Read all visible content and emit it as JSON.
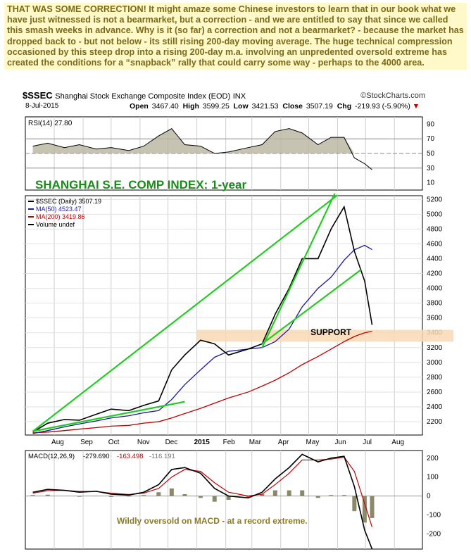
{
  "commentary": "THAT WAS SOME CORRECTION! It might amaze some Chinese investors to learn that in our book what we have just witnessed is not a bearmarket, but a correction - and we are entitled to say that since we called this smash weeks in advance. Why is it (so far) a correction and not a bearmarket? - because the market has dropped back to - but not below - its still rising 200-day moving average. The huge technical compression occasioned by this steep drop into a rising 200-day m.a. involving an unpredented oversold extreme has created the conditions for a “snapback” rally that could carry some way - perhaps to the 4000 area.",
  "header": {
    "symbol": "$SSEC",
    "name": "Shanghai Stock Exchange Composite Index (EOD)",
    "exchange": "INX",
    "brand": "©StockCharts.com",
    "date": "8-Jul-2015",
    "open_label": "Open",
    "open": "3467.40",
    "high_label": "High",
    "high": "3599.25",
    "low_label": "Low",
    "low": "3421.53",
    "close_label": "Close",
    "close": "3507.19",
    "chg_label": "Chg",
    "chg": "-219.93 (-5.90%)",
    "chg_marker": "▼"
  },
  "chart_data": [
    {
      "type": "line",
      "panel": "rsi",
      "legend": "RSI(14) 27.80",
      "yticks": [
        10,
        30,
        50,
        70,
        90
      ],
      "ylim": [
        0,
        100
      ],
      "overbought": 70,
      "oversold": 30,
      "x": [
        "2014-07-09",
        "2014-07-25",
        "2014-08-12",
        "2014-08-28",
        "2014-09-15",
        "2014-10-01",
        "2014-10-20",
        "2014-11-05",
        "2014-11-21",
        "2014-12-05",
        "2014-12-19",
        "2015-01-05",
        "2015-01-20",
        "2015-02-04",
        "2015-02-25",
        "2015-03-12",
        "2015-03-26",
        "2015-04-10",
        "2015-04-24",
        "2015-05-11",
        "2015-05-25",
        "2015-06-08",
        "2015-06-19",
        "2015-06-30",
        "2015-07-08"
      ],
      "values": [
        60,
        64,
        58,
        62,
        56,
        58,
        54,
        60,
        74,
        84,
        62,
        60,
        50,
        52,
        58,
        62,
        80,
        84,
        78,
        62,
        72,
        72,
        44,
        36,
        27.8
      ]
    },
    {
      "type": "line",
      "panel": "price",
      "title": "SHANGHAI S.E. COMP INDEX: 1-year",
      "legend": [
        "$SSEC (Daily) 3507.19",
        "MA(50) 4523.47",
        "MA(200) 3419.86",
        "Volume undef"
      ],
      "yticks": [
        2200,
        2400,
        2600,
        2800,
        3000,
        3200,
        3400,
        3600,
        3800,
        4000,
        4200,
        4400,
        4600,
        4800,
        5000,
        5200
      ],
      "ylim": [
        2020,
        5250
      ],
      "xticks": [
        "Aug",
        "Sep",
        "Oct",
        "Nov",
        "Dec",
        "2015",
        "Feb",
        "Mar",
        "Apr",
        "May",
        "Jun",
        "Jul",
        "Aug"
      ],
      "x": [
        "2014-07-09",
        "2014-07-25",
        "2014-08-12",
        "2014-08-28",
        "2014-09-15",
        "2014-10-01",
        "2014-10-20",
        "2014-11-05",
        "2014-11-21",
        "2014-12-05",
        "2014-12-19",
        "2015-01-05",
        "2015-01-20",
        "2015-02-04",
        "2015-02-25",
        "2015-03-12",
        "2015-03-26",
        "2015-04-10",
        "2015-04-24",
        "2015-05-11",
        "2015-05-25",
        "2015-06-08",
        "2015-06-19",
        "2015-06-30",
        "2015-07-08"
      ],
      "series": [
        {
          "name": "$SSEC (Daily)",
          "values": [
            2060,
            2180,
            2230,
            2220,
            2300,
            2370,
            2350,
            2420,
            2480,
            2900,
            3100,
            3300,
            3250,
            3100,
            3180,
            3250,
            3650,
            4000,
            4400,
            4400,
            4800,
            5100,
            4500,
            4100,
            3507
          ]
        },
        {
          "name": "MA(50)",
          "values": [
            2040,
            2080,
            2130,
            2170,
            2210,
            2250,
            2280,
            2320,
            2350,
            2500,
            2700,
            2900,
            3070,
            3150,
            3180,
            3200,
            3280,
            3450,
            3750,
            4000,
            4150,
            4380,
            4520,
            4580,
            4523
          ]
        },
        {
          "name": "MA(200)",
          "values": [
            2050,
            2060,
            2080,
            2100,
            2120,
            2140,
            2150,
            2180,
            2200,
            2250,
            2310,
            2380,
            2450,
            2520,
            2600,
            2680,
            2760,
            2860,
            2970,
            3080,
            3180,
            3280,
            3350,
            3400,
            3420
          ]
        }
      ],
      "annotations": [
        "SUPPORT"
      ],
      "support_band": [
        3280,
        3440
      ],
      "trendlines": [
        {
          "from": [
            "2014-07-09",
            2070
          ],
          "to": [
            "2014-12-19",
            2470
          ]
        },
        {
          "from": [
            "2014-07-09",
            2070
          ],
          "to": [
            "2015-06-01",
            5260
          ]
        },
        {
          "from": [
            "2015-03-12",
            3200
          ],
          "to": [
            "2015-05-29",
            5280
          ]
        },
        {
          "from": [
            "2015-03-12",
            3250
          ],
          "to": [
            "2015-06-26",
            4250
          ]
        }
      ]
    },
    {
      "type": "line",
      "panel": "macd",
      "legend": [
        "MACD(12,26,9)",
        "-279.690",
        "-163.498",
        "-116.191"
      ],
      "annotation": "Wildly oversold on MACD - at a record extreme.",
      "yticks": [
        -200,
        -100,
        0,
        100,
        200
      ],
      "ylim": [
        -280,
        240
      ],
      "xticks": [
        "Aug",
        "Sep",
        "Oct",
        "Nov",
        "Dec",
        "2015",
        "Feb",
        "Mar",
        "Apr",
        "May",
        "Jun",
        "Jul",
        "Aug"
      ],
      "x": [
        "2014-07-09",
        "2014-07-25",
        "2014-08-12",
        "2014-08-28",
        "2014-09-15",
        "2014-10-01",
        "2014-10-20",
        "2014-11-05",
        "2014-11-21",
        "2014-12-05",
        "2014-12-19",
        "2015-01-05",
        "2015-01-20",
        "2015-02-04",
        "2015-02-25",
        "2015-03-12",
        "2015-03-26",
        "2015-04-10",
        "2015-04-24",
        "2015-05-11",
        "2015-05-25",
        "2015-06-08",
        "2015-06-19",
        "2015-06-30",
        "2015-07-08"
      ],
      "series": [
        {
          "name": "MACD",
          "values": [
            20,
            35,
            30,
            20,
            25,
            10,
            5,
            20,
            60,
            140,
            150,
            120,
            40,
            0,
            -10,
            20,
            90,
            150,
            220,
            180,
            200,
            210,
            50,
            -180,
            -279.69
          ]
        },
        {
          "name": "Signal",
          "values": [
            15,
            28,
            30,
            24,
            24,
            15,
            8,
            15,
            40,
            100,
            140,
            130,
            70,
            20,
            0,
            10,
            60,
            120,
            190,
            190,
            195,
            205,
            130,
            -40,
            -163.5
          ]
        },
        {
          "name": "Histogram",
          "values": [
            5,
            7,
            0,
            -4,
            1,
            -5,
            -3,
            5,
            20,
            40,
            10,
            -10,
            -30,
            -20,
            -10,
            10,
            30,
            30,
            30,
            -10,
            5,
            5,
            -80,
            -140,
            -116.19
          ]
        }
      ]
    }
  ],
  "colors": {
    "price": "#000000",
    "ma50": "#1a1aa0",
    "ma200": "#c00000",
    "rsi_fill": "#b8b4a0",
    "trend": "#22cc22",
    "support": "#f8d9b4",
    "title_green": "#1a8a1a",
    "commentary_bg": "#fff8c8",
    "commentary_text": "#7a6a1a"
  }
}
